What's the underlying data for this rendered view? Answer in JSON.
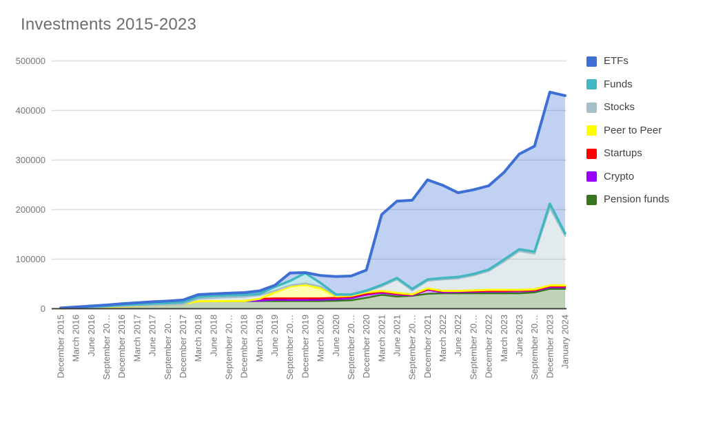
{
  "chart_data": {
    "type": "area",
    "stacked": true,
    "title": "Investments 2015-2023",
    "values_mode": "plotted line positions read from the y-axis (stacked cumulative tops)",
    "ylim": [
      0,
      500000
    ],
    "y_ticks": [
      0,
      100000,
      200000,
      300000,
      400000,
      500000
    ],
    "grid": "horizontal",
    "legend_position": "right",
    "categories": [
      "December 2015",
      "March 2016",
      "June 2016",
      "September 20…",
      "December 2016",
      "March 2017",
      "June 2017",
      "September 20…",
      "December 2017",
      "March 2018",
      "June 2018",
      "September 20…",
      "December 2018",
      "March 2019",
      "June 2019",
      "September 20…",
      "December 2019",
      "March 2020",
      "June 2020",
      "September 20…",
      "December 2020",
      "March 2021",
      "June 2021",
      "September 20…",
      "December 2021",
      "March 2022",
      "June 2022",
      "September 20…",
      "December 2022",
      "March 2023",
      "June 2023",
      "September 20…",
      "December 2023",
      "January 2024"
    ],
    "series": [
      {
        "name": "ETFs",
        "color": "#3D6FD5",
        "values": [
          1500,
          3500,
          5500,
          7500,
          10000,
          12000,
          14000,
          15500,
          17500,
          28500,
          30000,
          31500,
          32500,
          36000,
          47000,
          72000,
          73000,
          67000,
          65000,
          66000,
          78000,
          190000,
          217000,
          219000,
          260000,
          249000,
          234000,
          240000,
          248000,
          275000,
          312000,
          328000,
          437000,
          430000
        ]
      },
      {
        "name": "Funds",
        "color": "#42B7C2",
        "values": [
          1000,
          2800,
          4300,
          5800,
          7500,
          9000,
          10500,
          11500,
          13000,
          24000,
          26000,
          27000,
          28000,
          30000,
          44000,
          56000,
          72000,
          52000,
          29000,
          28500,
          36500,
          48000,
          62000,
          40000,
          59000,
          62000,
          64000,
          70000,
          79000,
          99000,
          120000,
          115000,
          212000,
          152000
        ]
      },
      {
        "name": "Stocks",
        "color": "#A4BFC9",
        "values": [
          500,
          1800,
          2800,
          3800,
          5000,
          6000,
          7000,
          8000,
          9000,
          20000,
          21500,
          23000,
          24000,
          27000,
          36000,
          47000,
          51000,
          45000,
          27000,
          27500,
          35000,
          45000,
          59000,
          37000,
          56000,
          59000,
          61000,
          67000,
          76000,
          95000,
          116000,
          111000,
          204000,
          147000
        ]
      },
      {
        "name": "Peer to Peer",
        "color": "#FFFF00",
        "values": [
          300,
          1000,
          2000,
          3000,
          4500,
          5500,
          7000,
          8000,
          9500,
          15000,
          15200,
          15400,
          15500,
          20000,
          33000,
          45000,
          48000,
          41000,
          25000,
          26000,
          33000,
          36000,
          32000,
          29000,
          41000,
          36000,
          36000,
          37000,
          38000,
          38000,
          38000,
          39000,
          47000,
          47000
        ]
      },
      {
        "name": "Startups",
        "color": "#FF0000",
        "values": [
          300,
          1000,
          2000,
          3000,
          4500,
          5500,
          7000,
          8000,
          9500,
          15000,
          15200,
          15400,
          15500,
          20000,
          21000,
          21000,
          21000,
          21000,
          22000,
          24000,
          30000,
          34000,
          30000,
          28000,
          39000,
          35000,
          35000,
          35500,
          36000,
          36000,
          36500,
          37000,
          45000,
          45000
        ]
      },
      {
        "name": "Crypto",
        "color": "#9900FF",
        "values": [
          300,
          1000,
          2000,
          3000,
          4500,
          5500,
          7000,
          8000,
          9500,
          15000,
          15200,
          15400,
          15500,
          16000,
          18000,
          17500,
          17500,
          18000,
          19000,
          21000,
          28000,
          32000,
          28500,
          26500,
          38000,
          33000,
          33500,
          34000,
          34500,
          34500,
          35000,
          36000,
          43000,
          43000
        ]
      },
      {
        "name": "Pension funds",
        "color": "#38761D",
        "values": [
          300,
          1000,
          2000,
          3000,
          4500,
          5500,
          7000,
          8000,
          9500,
          15000,
          15200,
          15400,
          15500,
          15500,
          15500,
          15500,
          15500,
          15500,
          16000,
          17000,
          22000,
          28000,
          24500,
          26000,
          30000,
          31000,
          31000,
          31000,
          31000,
          31000,
          31000,
          33000,
          40000,
          40000
        ]
      }
    ]
  }
}
